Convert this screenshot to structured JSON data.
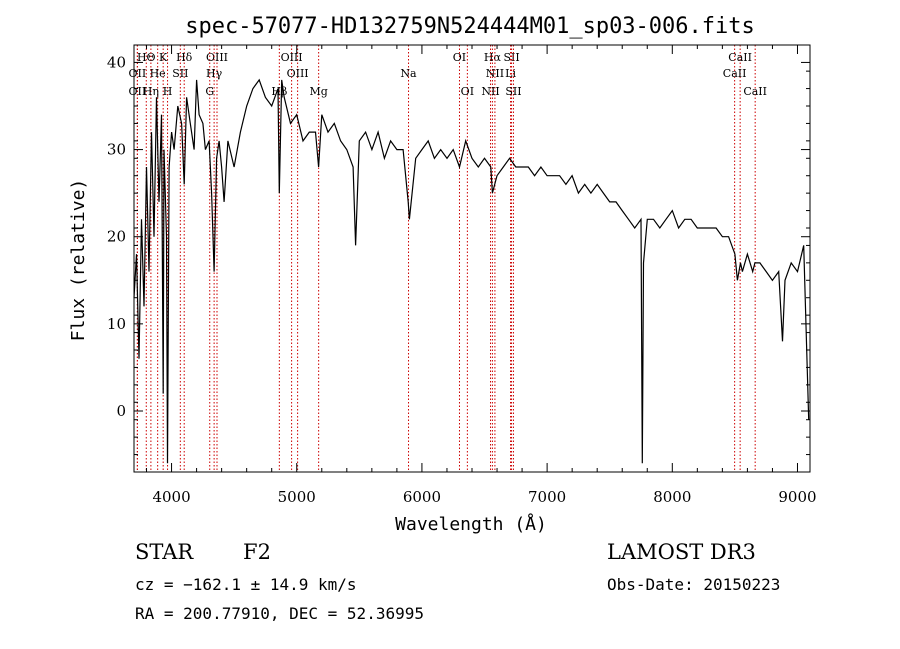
{
  "chart_data": {
    "type": "line",
    "title": "spec-57077-HD132759N524444M01_sp03-006.fits",
    "xlabel": "Wavelength (Å)",
    "ylabel": "Flux (relative)",
    "xlim": [
      3700,
      9100
    ],
    "ylim": [
      -7,
      42
    ],
    "xticks": [
      4000,
      5000,
      6000,
      7000,
      8000,
      9000
    ],
    "yticks": [
      0,
      10,
      20,
      30,
      40
    ],
    "spectrum": {
      "x": [
        3700,
        3720,
        3740,
        3760,
        3780,
        3800,
        3820,
        3840,
        3860,
        3880,
        3900,
        3920,
        3933,
        3940,
        3960,
        3968,
        3980,
        4000,
        4020,
        4050,
        4080,
        4101,
        4120,
        4150,
        4180,
        4200,
        4220,
        4250,
        4270,
        4300,
        4320,
        4340,
        4360,
        4380,
        4400,
        4420,
        4450,
        4500,
        4550,
        4600,
        4650,
        4700,
        4750,
        4800,
        4850,
        4861,
        4880,
        4900,
        4950,
        5000,
        5050,
        5100,
        5150,
        5175,
        5200,
        5250,
        5300,
        5350,
        5400,
        5450,
        5470,
        5500,
        5550,
        5600,
        5650,
        5700,
        5750,
        5800,
        5850,
        5890,
        5900,
        5950,
        6000,
        6050,
        6100,
        6150,
        6200,
        6250,
        6300,
        6350,
        6400,
        6450,
        6500,
        6550,
        6563,
        6600,
        6650,
        6700,
        6750,
        6800,
        6850,
        6900,
        6950,
        7000,
        7050,
        7100,
        7150,
        7200,
        7250,
        7300,
        7350,
        7400,
        7450,
        7500,
        7550,
        7600,
        7650,
        7700,
        7750,
        7760,
        7770,
        7800,
        7850,
        7900,
        7950,
        8000,
        8050,
        8100,
        8150,
        8200,
        8250,
        8300,
        8350,
        8400,
        8450,
        8500,
        8520,
        8545,
        8560,
        8600,
        8642,
        8660,
        8700,
        8750,
        8800,
        8850,
        8880,
        8900,
        8950,
        9000,
        9050,
        9090
      ],
      "y": [
        13,
        18,
        6,
        22,
        12,
        28,
        16,
        32,
        20,
        36,
        24,
        34,
        2,
        30,
        20,
        -6,
        28,
        32,
        30,
        35,
        33,
        26,
        36,
        33,
        30,
        38,
        34,
        33,
        30,
        31,
        25,
        16,
        29,
        31,
        28,
        24,
        31,
        28,
        32,
        35,
        37,
        38,
        36,
        35,
        37,
        25,
        38,
        36,
        33,
        34,
        31,
        32,
        32,
        28,
        34,
        32,
        33,
        31,
        30,
        28,
        19,
        31,
        32,
        30,
        32,
        29,
        31,
        30,
        30,
        24,
        22,
        29,
        30,
        31,
        29,
        30,
        29,
        30,
        28,
        31,
        29,
        28,
        29,
        28,
        25,
        27,
        28,
        29,
        28,
        28,
        28,
        27,
        28,
        27,
        27,
        27,
        26,
        27,
        25,
        26,
        25,
        26,
        25,
        24,
        24,
        23,
        22,
        21,
        22,
        -6,
        17,
        22,
        22,
        21,
        22,
        23,
        21,
        22,
        22,
        21,
        21,
        21,
        21,
        20,
        20,
        18,
        15,
        17,
        16,
        18,
        16,
        17,
        17,
        16,
        15,
        16,
        8,
        15,
        17,
        16,
        19,
        -1
      ]
    },
    "line_markers": [
      {
        "name": "HΘ",
        "wl": 3798,
        "row": 0
      },
      {
        "name": "K",
        "wl": 3933,
        "row": 0
      },
      {
        "name": "Hδ",
        "wl": 4101,
        "row": 0
      },
      {
        "name": "OIII",
        "wl": 4363,
        "row": 0
      },
      {
        "name": "OIII",
        "wl": 4959,
        "row": 0
      },
      {
        "name": "OI",
        "wl": 6300,
        "row": 0
      },
      {
        "name": "Hα",
        "wl": 6563,
        "row": 0
      },
      {
        "name": "SII",
        "wl": 6716,
        "row": 0
      },
      {
        "name": "CaII",
        "wl": 8542,
        "row": 0
      },
      {
        "name": "OII",
        "wl": 3727,
        "row": 1
      },
      {
        "name": "He",
        "wl": 3889,
        "row": 1
      },
      {
        "name": "SII",
        "wl": 4070,
        "row": 1
      },
      {
        "name": "Hγ",
        "wl": 4340,
        "row": 1
      },
      {
        "name": "OIII",
        "wl": 5007,
        "row": 1
      },
      {
        "name": "Na",
        "wl": 5893,
        "row": 1
      },
      {
        "name": "NII",
        "wl": 6583,
        "row": 1
      },
      {
        "name": "Li",
        "wl": 6708,
        "row": 1
      },
      {
        "name": "CaII",
        "wl": 8498,
        "row": 1
      },
      {
        "name": "OII",
        "wl": 3727,
        "row": 2
      },
      {
        "name": "Hη",
        "wl": 3835,
        "row": 2
      },
      {
        "name": "H",
        "wl": 3968,
        "row": 2
      },
      {
        "name": "G",
        "wl": 4305,
        "row": 2
      },
      {
        "name": "Hβ",
        "wl": 4861,
        "row": 2
      },
      {
        "name": "Mg",
        "wl": 5175,
        "row": 2
      },
      {
        "name": "OI",
        "wl": 6363,
        "row": 2
      },
      {
        "name": "NII",
        "wl": 6548,
        "row": 2
      },
      {
        "name": "SII",
        "wl": 6731,
        "row": 2
      },
      {
        "name": "CaII",
        "wl": 8662,
        "row": 2
      }
    ],
    "marker_color": "#cc0000"
  },
  "info": {
    "object_class": "STAR",
    "subclass": "F2",
    "survey": "LAMOST DR3",
    "cz": "cz = −162.1 ± 14.9 km/s",
    "obs_date": "Obs-Date: 20150223",
    "coords": "RA = 200.77910, DEC =  52.36995"
  }
}
